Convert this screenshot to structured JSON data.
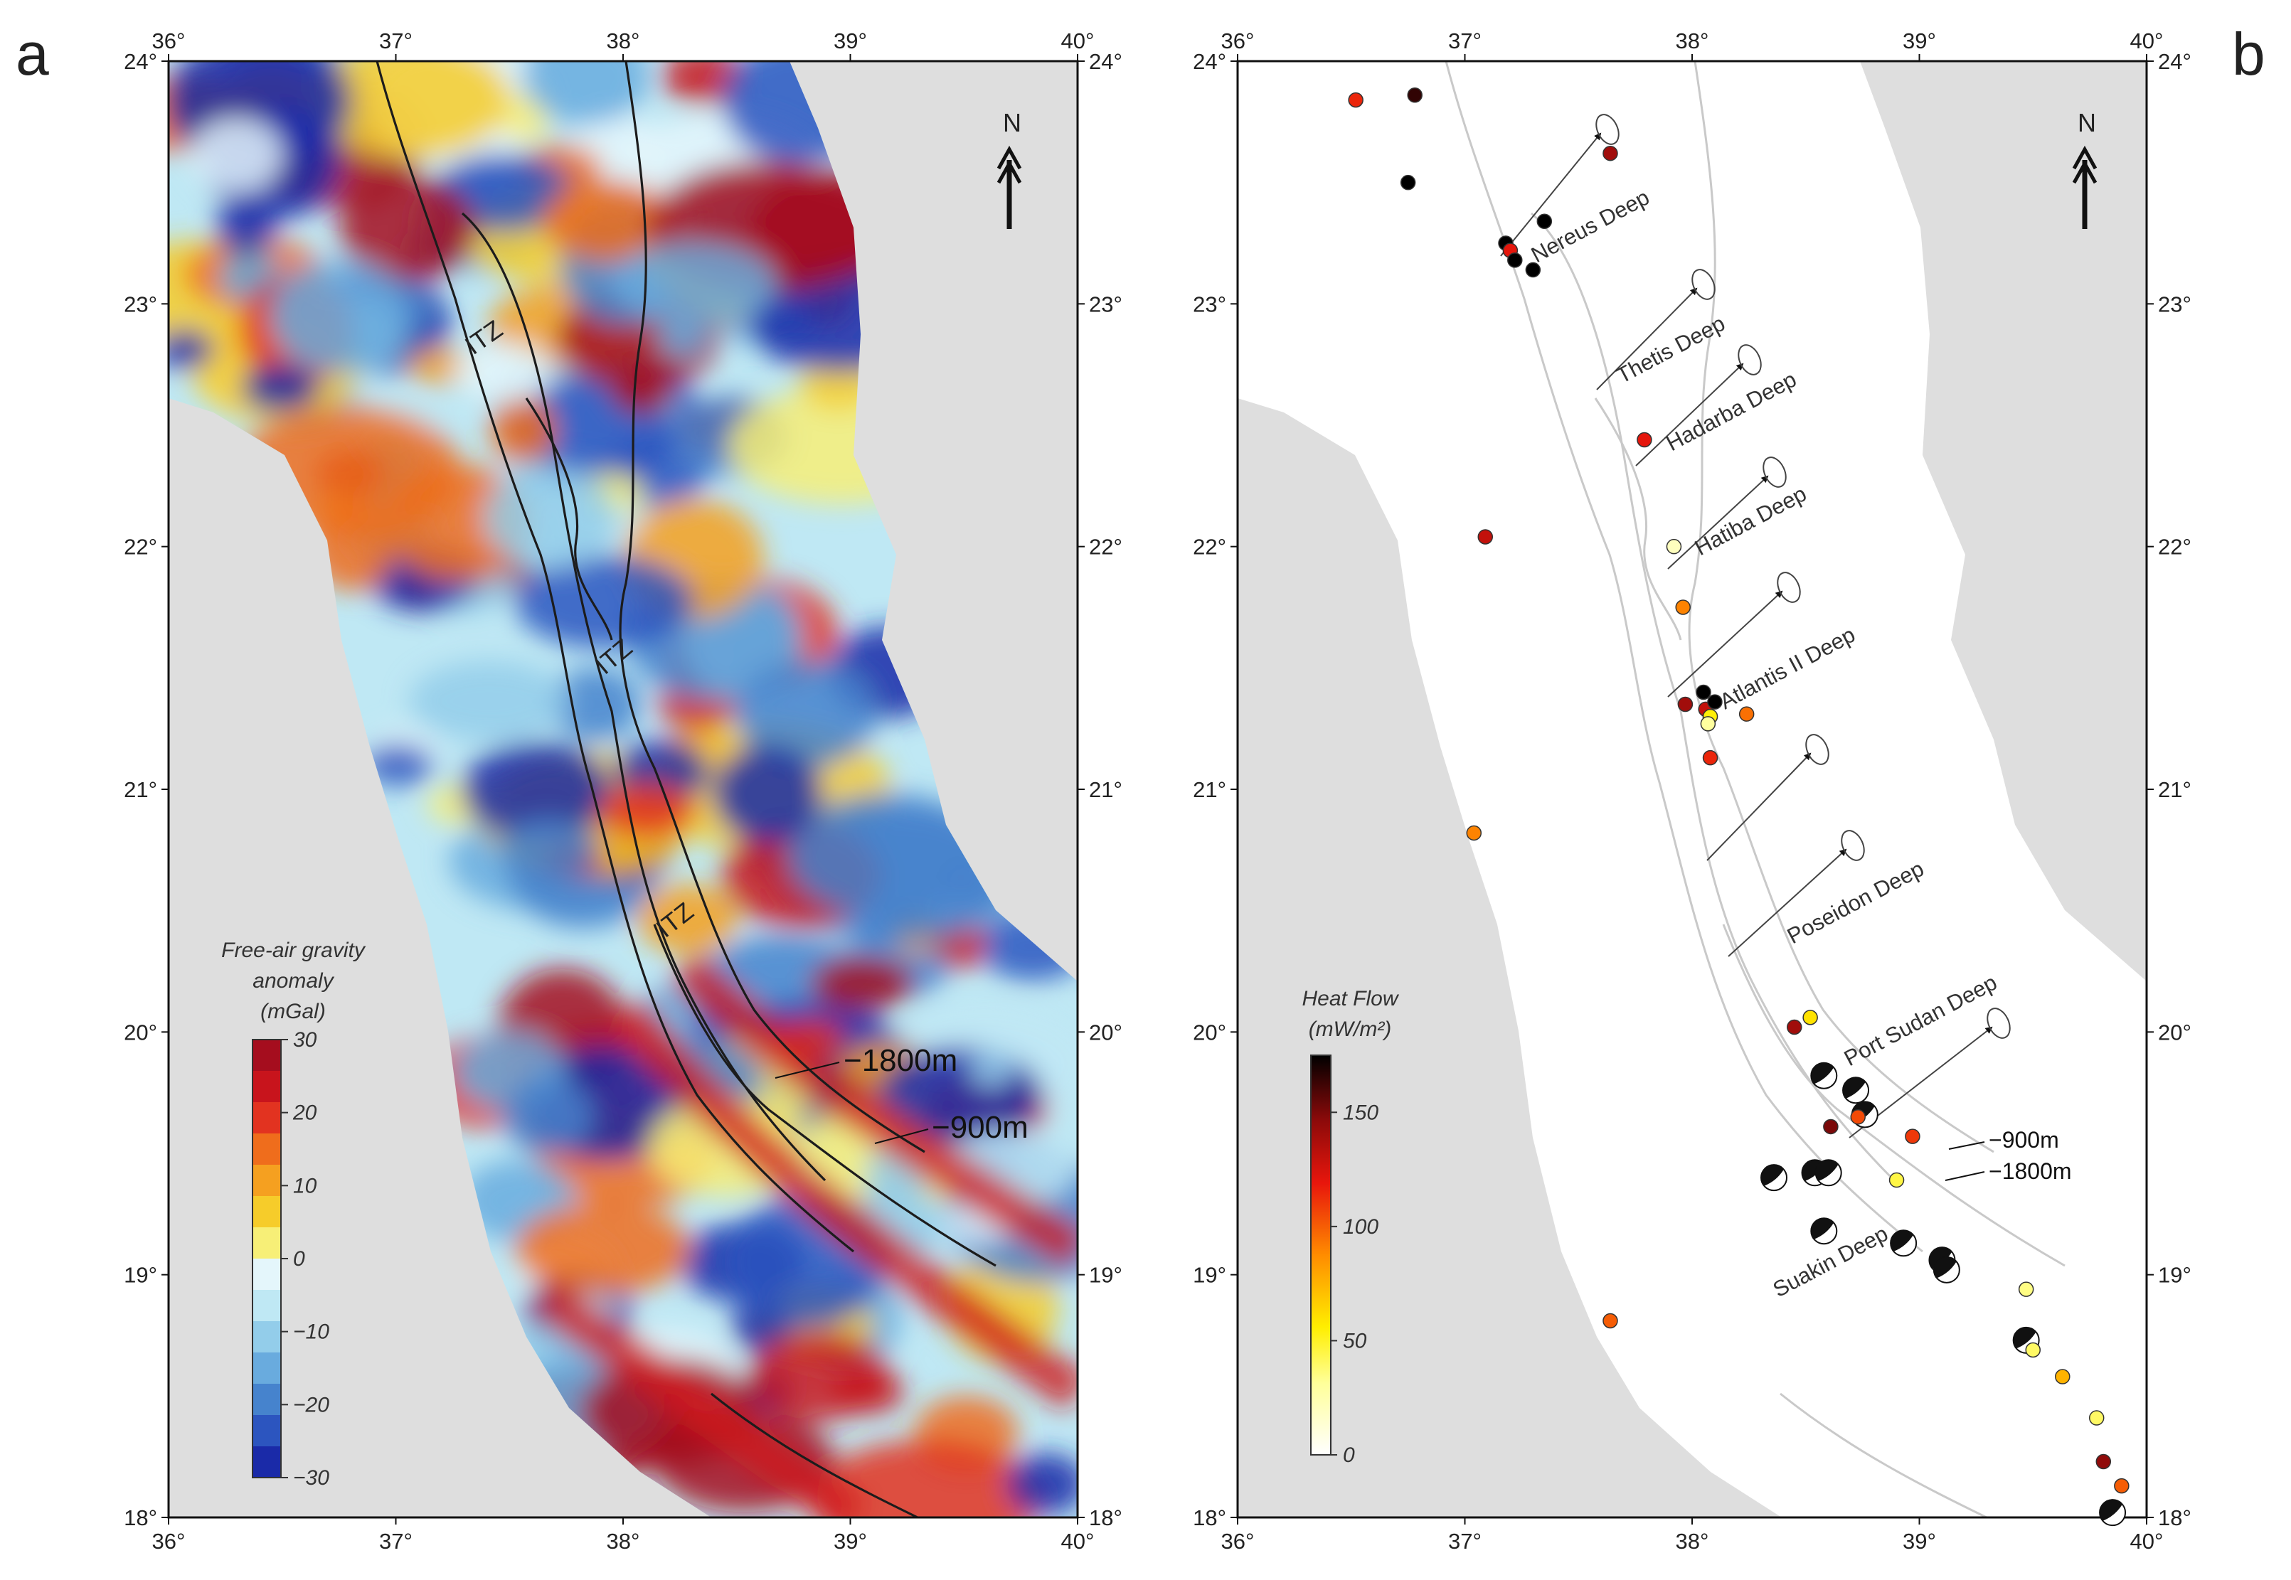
{
  "panel_a": {
    "letter": "a",
    "lon_ticks": [
      "36°",
      "37°",
      "38°",
      "39°",
      "40°"
    ],
    "lat_ticks": [
      "24°",
      "23°",
      "22°",
      "21°",
      "20°",
      "19°",
      "18°"
    ],
    "north_label": "N",
    "colorbar": {
      "title_lines": [
        "Free-air gravity",
        "anomaly",
        "(mGal)"
      ],
      "ticks": [
        "30",
        "20",
        "10",
        "0",
        "−10",
        "−20",
        "−30"
      ],
      "colors": [
        "#a50d1e",
        "#c8141c",
        "#e23320",
        "#ef6d1c",
        "#f5a020",
        "#f6cc2a",
        "#f7ef77",
        "#e4f6fb",
        "#bfe8f4",
        "#93cdea",
        "#69abde",
        "#4683cd",
        "#2c55bf",
        "#1a2aa8"
      ]
    },
    "labels": {
      "itz_1": "ITZ",
      "itz_2": "ITZ",
      "itz_3": "ITZ",
      "depth_1800": "−1800m",
      "depth_900": "−900m"
    }
  },
  "panel_b": {
    "letter": "b",
    "lon_ticks": [
      "36°",
      "37°",
      "38°",
      "39°",
      "40°"
    ],
    "lat_ticks": [
      "24°",
      "23°",
      "22°",
      "21°",
      "20°",
      "19°",
      "18°"
    ],
    "north_label": "N",
    "colorbar": {
      "title_lines": [
        "Heat Flow",
        "(mW/m²)"
      ],
      "ticks": [
        "150",
        "100",
        "50",
        "0"
      ],
      "tick_values": [
        150,
        100,
        50,
        0
      ],
      "max": 175
    },
    "deeps": [
      "Nereus Deep",
      "Thetis Deep",
      "Hadarba Deep",
      "Hatiba Deep",
      "Atlantis II  Deep",
      "Poseidon  Deep",
      "Port  Sudan  Deep",
      "Suakin  Deep"
    ],
    "depth_900": "−900m",
    "depth_1800": "−1800m",
    "heat_flow_points": [
      {
        "lon": 36.52,
        "lat": 23.84,
        "hf": 115
      },
      {
        "lon": 36.78,
        "lat": 23.86,
        "hf": 165
      },
      {
        "lon": 36.75,
        "lat": 23.5,
        "hf": 175
      },
      {
        "lon": 37.18,
        "lat": 23.25,
        "hf": 175
      },
      {
        "lon": 37.2,
        "lat": 23.22,
        "hf": 120
      },
      {
        "lon": 37.22,
        "lat": 23.18,
        "hf": 175
      },
      {
        "lon": 37.3,
        "lat": 23.14,
        "hf": 175
      },
      {
        "lon": 37.35,
        "lat": 23.34,
        "hf": 175
      },
      {
        "lon": 37.64,
        "lat": 23.62,
        "hf": 140
      },
      {
        "lon": 37.79,
        "lat": 22.44,
        "hf": 120
      },
      {
        "lon": 37.09,
        "lat": 22.04,
        "hf": 130
      },
      {
        "lon": 37.92,
        "lat": 22.0,
        "hf": 20
      },
      {
        "lon": 37.96,
        "lat": 21.75,
        "hf": 90
      },
      {
        "lon": 37.97,
        "lat": 21.35,
        "hf": 140
      },
      {
        "lon": 38.05,
        "lat": 21.4,
        "hf": 175
      },
      {
        "lon": 38.06,
        "lat": 21.33,
        "hf": 130
      },
      {
        "lon": 38.08,
        "lat": 21.3,
        "hf": 55
      },
      {
        "lon": 38.1,
        "lat": 21.36,
        "hf": 175
      },
      {
        "lon": 38.07,
        "lat": 21.27,
        "hf": 30
      },
      {
        "lon": 38.24,
        "lat": 21.31,
        "hf": 95
      },
      {
        "lon": 38.08,
        "lat": 21.13,
        "hf": 115
      },
      {
        "lon": 37.04,
        "lat": 20.82,
        "hf": 90
      },
      {
        "lon": 38.45,
        "lat": 20.02,
        "hf": 140
      },
      {
        "lon": 38.52,
        "lat": 20.06,
        "hf": 60
      },
      {
        "lon": 38.61,
        "lat": 19.61,
        "hf": 150
      },
      {
        "lon": 38.73,
        "lat": 19.65,
        "hf": 105
      },
      {
        "lon": 38.97,
        "lat": 19.57,
        "hf": 110
      },
      {
        "lon": 38.9,
        "lat": 19.39,
        "hf": 45
      },
      {
        "lon": 39.47,
        "lat": 18.94,
        "hf": 35
      },
      {
        "lon": 39.5,
        "lat": 18.69,
        "hf": 40
      },
      {
        "lon": 39.63,
        "lat": 18.58,
        "hf": 75
      },
      {
        "lon": 39.78,
        "lat": 18.41,
        "hf": 40
      },
      {
        "lon": 39.81,
        "lat": 18.23,
        "hf": 145
      },
      {
        "lon": 39.89,
        "lat": 18.13,
        "hf": 100
      },
      {
        "lon": 37.64,
        "lat": 18.81,
        "hf": 100
      }
    ],
    "focal_mechanisms": [
      {
        "lon": 38.58,
        "lat": 19.82
      },
      {
        "lon": 38.72,
        "lat": 19.76
      },
      {
        "lon": 38.76,
        "lat": 19.66
      },
      {
        "lon": 38.36,
        "lat": 19.4
      },
      {
        "lon": 38.54,
        "lat": 19.42
      },
      {
        "lon": 38.6,
        "lat": 19.42
      },
      {
        "lon": 38.58,
        "lat": 19.18
      },
      {
        "lon": 38.93,
        "lat": 19.13
      },
      {
        "lon": 39.1,
        "lat": 19.06
      },
      {
        "lon": 39.12,
        "lat": 19.02
      },
      {
        "lon": 39.47,
        "lat": 18.73
      },
      {
        "lon": 39.85,
        "lat": 18.02
      }
    ]
  }
}
